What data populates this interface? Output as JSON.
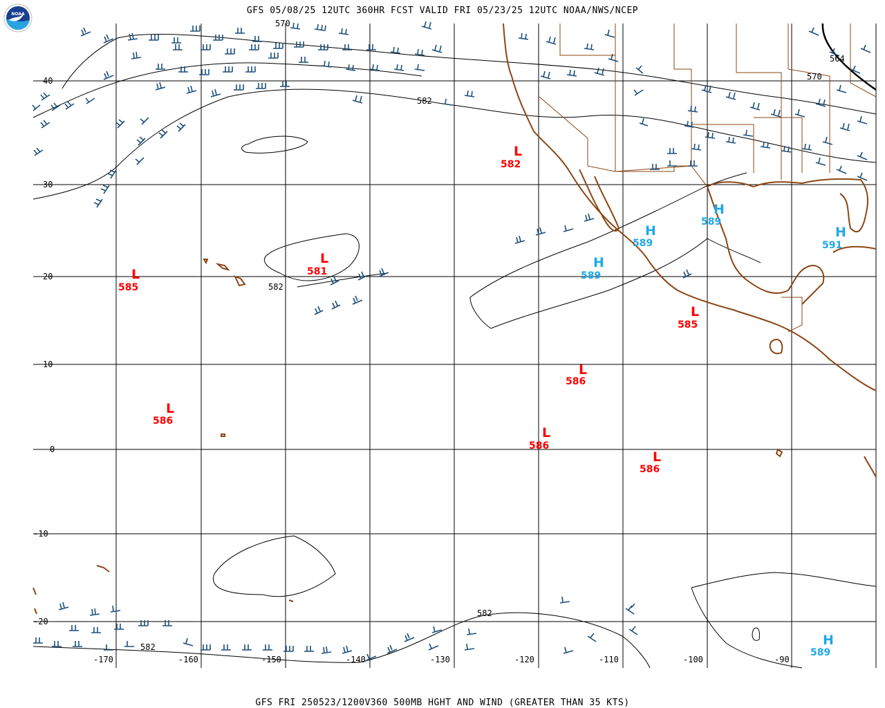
{
  "header": {
    "title": "GFS 05/08/25 12UTC 360HR FCST VALID FRI 05/23/25 12UTC NOAA/NWS/NCEP",
    "logo_text": "NOAA"
  },
  "footer": {
    "caption": "GFS FRI 250523/1200V360 500MB HGHT AND WIND (GREATER THAN 35 KTS)"
  },
  "colors": {
    "low": "#ff0000",
    "high": "#1ea8e8",
    "barbs": "#1c4f7a",
    "coastline": "#8b4513",
    "contours": "#000000"
  },
  "axes": {
    "lon_labels": [
      "-170",
      "-160",
      "-150",
      "-140",
      "-130",
      "-120",
      "-110",
      "-100",
      "-90"
    ],
    "lat_labels": [
      "40",
      "30",
      "20",
      "10",
      "0",
      "-10",
      "-20"
    ]
  },
  "contour_labels": [
    "570",
    "582",
    "582",
    "582",
    "582",
    "570",
    "564"
  ],
  "pressure_centers": [
    {
      "type": "L",
      "value": "582"
    },
    {
      "type": "L",
      "value": "581"
    },
    {
      "type": "L",
      "value": "585"
    },
    {
      "type": "L",
      "value": "586"
    },
    {
      "type": "L",
      "value": "586"
    },
    {
      "type": "L",
      "value": "586"
    },
    {
      "type": "L",
      "value": "586"
    },
    {
      "type": "L",
      "value": "585"
    },
    {
      "type": "H",
      "value": "589"
    },
    {
      "type": "H",
      "value": "589"
    },
    {
      "type": "H",
      "value": "589"
    },
    {
      "type": "H",
      "value": "591"
    },
    {
      "type": "H",
      "value": "589"
    }
  ]
}
